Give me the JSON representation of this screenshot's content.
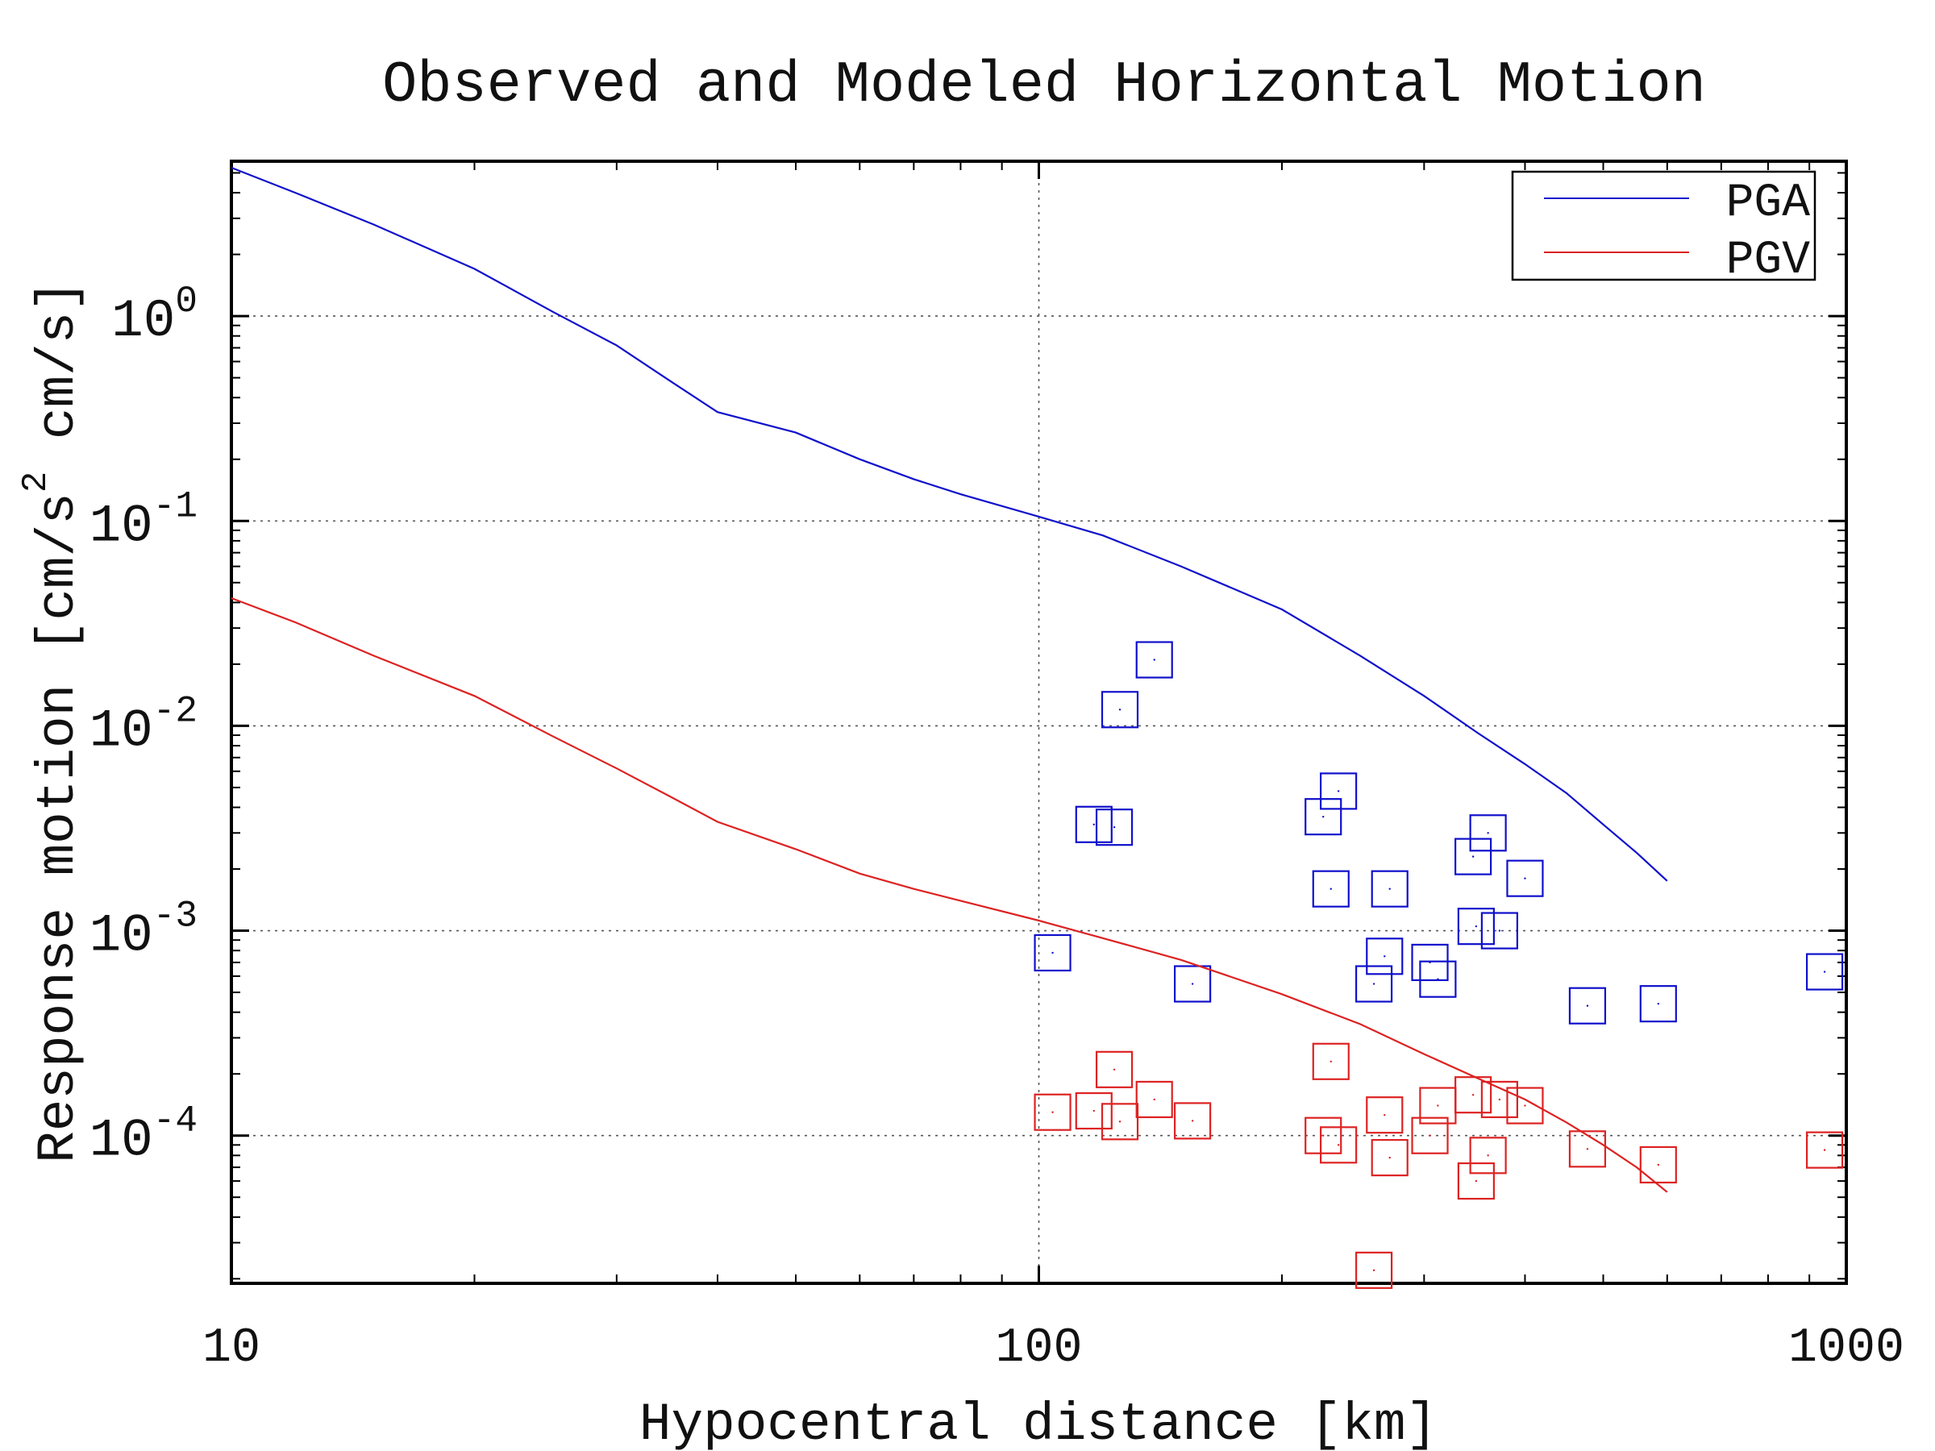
{
  "chart_data": {
    "type": "line",
    "title": "Observed and Modeled Horizontal Motion",
    "xlabel": "Hypocentral distance [km]",
    "ylabel": "Response motion [cm/s",
    "ylabel_sup": "2",
    "ylabel_tail": " cm/s]",
    "xscale": "log",
    "yscale": "log",
    "xlim": [
      10,
      1000
    ],
    "ylim": [
      1.9e-05,
      5.7
    ],
    "x_ticks": [
      {
        "value": 10,
        "label": "10"
      },
      {
        "value": 100,
        "label": "100"
      },
      {
        "value": 1000,
        "label": "1000"
      }
    ],
    "y_ticks": [
      {
        "value": 0.0001,
        "base": "10",
        "exp": "-4"
      },
      {
        "value": 0.001,
        "base": "10",
        "exp": "-3"
      },
      {
        "value": 0.01,
        "base": "10",
        "exp": "-2"
      },
      {
        "value": 0.1,
        "base": "10",
        "exp": "-1"
      },
      {
        "value": 1,
        "base": "10",
        "exp": "0"
      }
    ],
    "grid": true,
    "legend_position": "top-right",
    "series": [
      {
        "name": "PGA",
        "color": "#1010cc",
        "curve": [
          [
            10,
            5.3
          ],
          [
            12,
            4.0
          ],
          [
            15,
            2.8
          ],
          [
            20,
            1.7
          ],
          [
            25,
            1.05
          ],
          [
            30,
            0.72
          ],
          [
            35,
            0.48
          ],
          [
            40,
            0.34
          ],
          [
            50,
            0.27
          ],
          [
            60,
            0.2
          ],
          [
            70,
            0.16
          ],
          [
            80,
            0.135
          ],
          [
            100,
            0.105
          ],
          [
            120,
            0.085
          ],
          [
            150,
            0.06
          ],
          [
            200,
            0.037
          ],
          [
            250,
            0.022
          ],
          [
            300,
            0.014
          ],
          [
            350,
            0.0092
          ],
          [
            400,
            0.0065
          ],
          [
            450,
            0.0047
          ],
          [
            500,
            0.0033
          ],
          [
            550,
            0.0024
          ],
          [
            600,
            0.00175
          ]
        ],
        "points": [
          [
            104,
            0.00078
          ],
          [
            117,
            0.0033
          ],
          [
            124,
            0.0032
          ],
          [
            126,
            0.012
          ],
          [
            139,
            0.021
          ],
          [
            155,
            0.00055
          ],
          [
            225,
            0.0036
          ],
          [
            230,
            0.0016
          ],
          [
            235,
            0.0048
          ],
          [
            260,
            0.00055
          ],
          [
            268,
            0.00075
          ],
          [
            272,
            0.0016
          ],
          [
            305,
            0.0007
          ],
          [
            312,
            0.00058
          ],
          [
            345,
            0.0023
          ],
          [
            348,
            0.00105
          ],
          [
            360,
            0.003
          ],
          [
            372,
            0.001
          ],
          [
            400,
            0.0018
          ],
          [
            478,
            0.00043
          ],
          [
            585,
            0.00044
          ],
          [
            940,
            0.00063
          ]
        ]
      },
      {
        "name": "PGV",
        "color": "#dd2222",
        "curve": [
          [
            10,
            0.042
          ],
          [
            12,
            0.032
          ],
          [
            15,
            0.022
          ],
          [
            20,
            0.014
          ],
          [
            25,
            0.0089
          ],
          [
            30,
            0.0062
          ],
          [
            35,
            0.0045
          ],
          [
            40,
            0.0034
          ],
          [
            50,
            0.0025
          ],
          [
            60,
            0.0019
          ],
          [
            70,
            0.0016
          ],
          [
            80,
            0.0014
          ],
          [
            100,
            0.00112
          ],
          [
            120,
            0.00092
          ],
          [
            150,
            0.00072
          ],
          [
            200,
            0.00049
          ],
          [
            250,
            0.00035
          ],
          [
            300,
            0.00025
          ],
          [
            350,
            0.00019
          ],
          [
            400,
            0.00015
          ],
          [
            450,
            0.000116
          ],
          [
            500,
            9e-05
          ],
          [
            550,
            7e-05
          ],
          [
            600,
            5.3e-05
          ]
        ],
        "points": [
          [
            104,
            0.00013
          ],
          [
            117,
            0.000132
          ],
          [
            124,
            0.00021
          ],
          [
            126,
            0.000117
          ],
          [
            139,
            0.00015
          ],
          [
            155,
            0.000118
          ],
          [
            225,
            0.0001
          ],
          [
            230,
            0.00023
          ],
          [
            235,
            9e-05
          ],
          [
            260,
            2.2e-05
          ],
          [
            268,
            0.000126
          ],
          [
            272,
            7.8e-05
          ],
          [
            305,
            0.0001
          ],
          [
            312,
            0.00014
          ],
          [
            345,
            0.000158
          ],
          [
            348,
            6e-05
          ],
          [
            360,
            8e-05
          ],
          [
            372,
            0.00015
          ],
          [
            400,
            0.00014
          ],
          [
            478,
            8.6e-05
          ],
          [
            585,
            7.2e-05
          ],
          [
            940,
            8.5e-05
          ]
        ]
      }
    ]
  }
}
